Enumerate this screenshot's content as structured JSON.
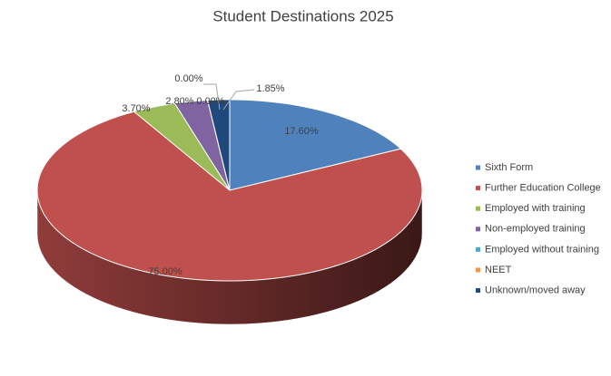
{
  "chart_data": {
    "type": "pie3d",
    "title": "Student Destinations 2025",
    "categories": [
      "Sixth Form",
      "Further Education College",
      "Employed with training",
      "Non-employed training",
      "Employed without training",
      "NEET",
      "Unknown/moved away"
    ],
    "values": [
      17.6,
      75,
      3.7,
      2.8,
      0,
      0,
      1.85
    ],
    "value_labels": [
      "17.60%",
      "75.00%",
      "3.70%",
      "2.80%",
      "0.00%",
      "0.00%",
      "1.85%"
    ],
    "colors": [
      "#4f81bd",
      "#c0504d",
      "#9bbb59",
      "#8064a2",
      "#4bacc6",
      "#f79646",
      "#1f497d"
    ],
    "legend": "right"
  }
}
